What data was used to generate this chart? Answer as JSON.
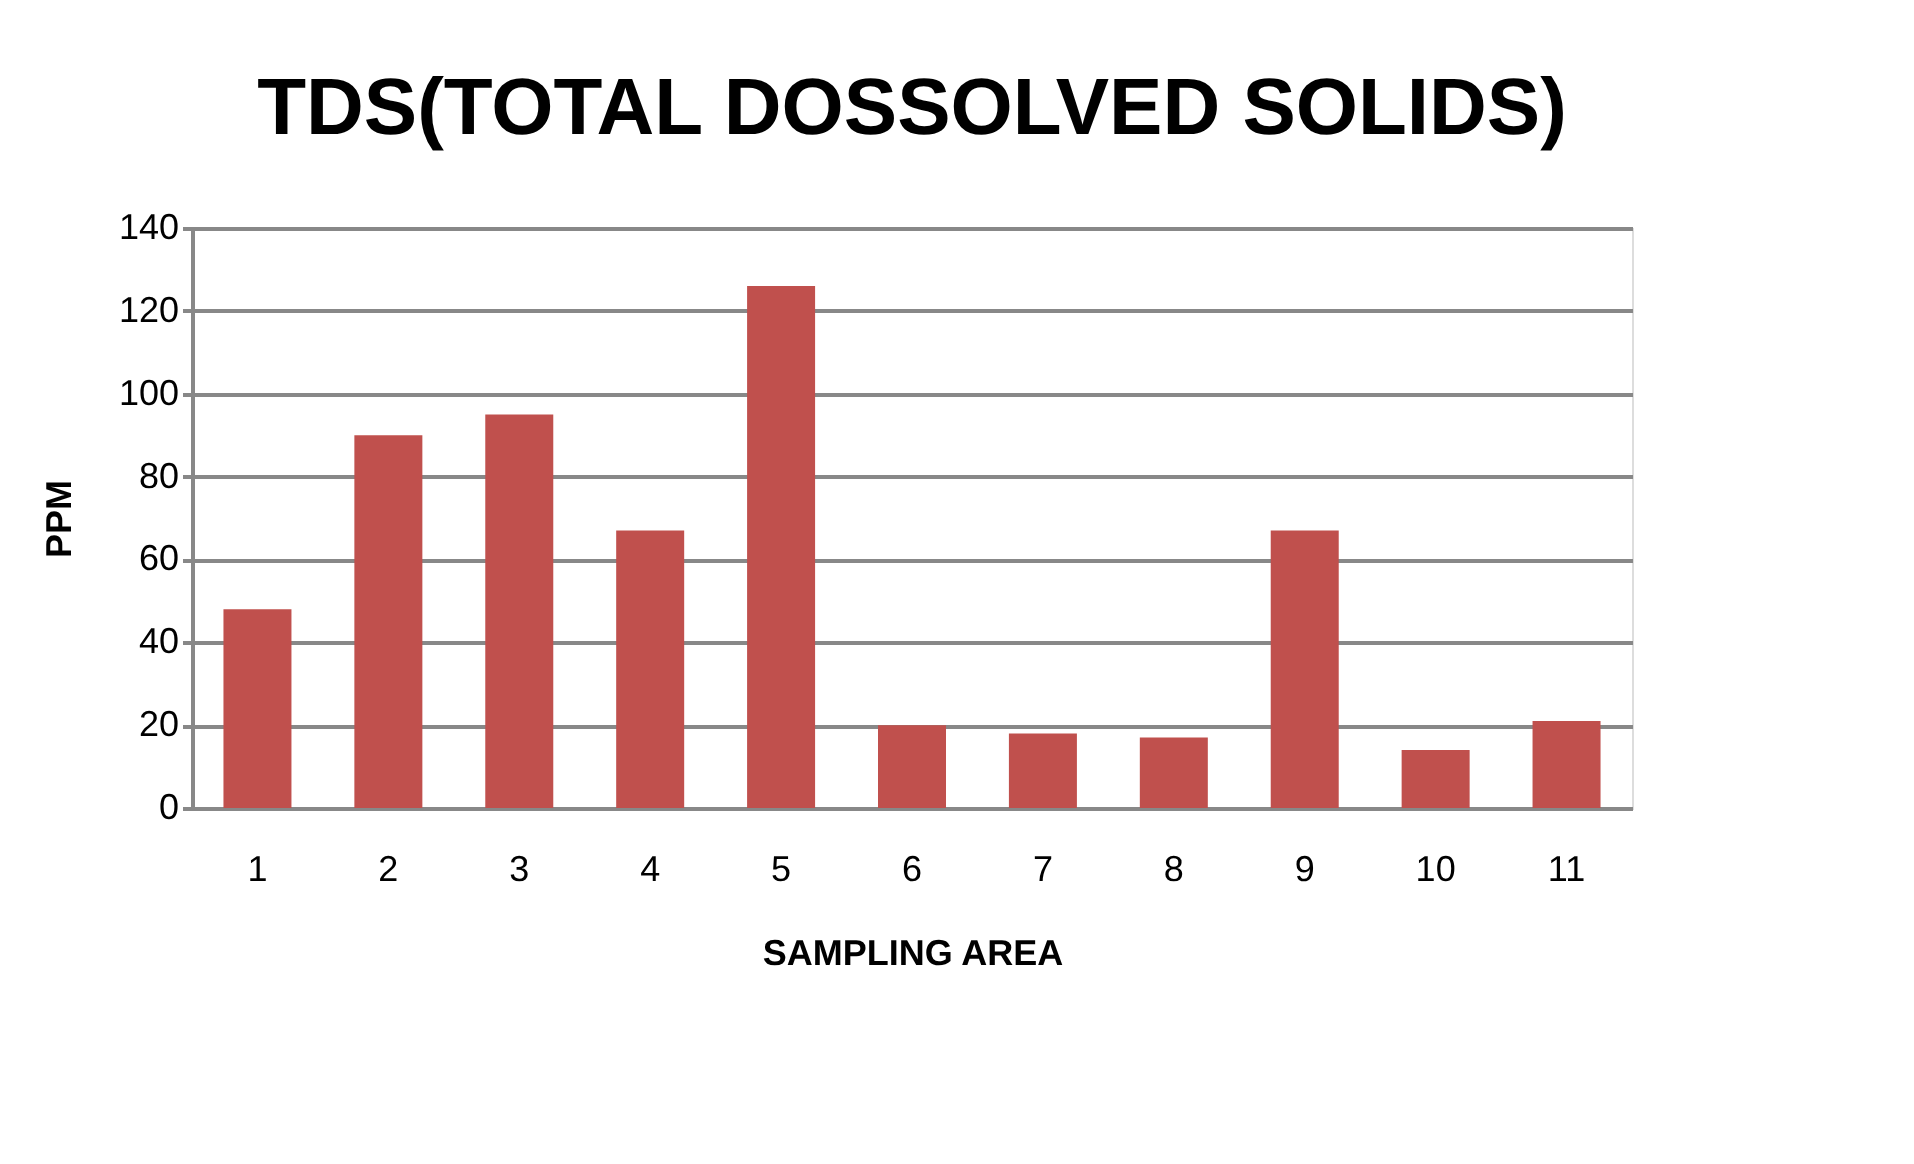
{
  "chart_data": {
    "type": "bar",
    "title": "TDS(TOTAL DOSSOLVED SOLIDS)",
    "xlabel": "SAMPLING AREA",
    "ylabel": "PPM",
    "categories": [
      "1",
      "2",
      "3",
      "4",
      "5",
      "6",
      "7",
      "8",
      "9",
      "10",
      "11"
    ],
    "values": [
      48,
      90,
      95,
      67,
      126,
      20,
      18,
      17,
      67,
      14,
      21
    ],
    "color": "#c0504d",
    "ylim": [
      0,
      140
    ],
    "yticks": [
      0,
      20,
      40,
      60,
      80,
      100,
      120,
      140
    ],
    "grid": "y"
  }
}
